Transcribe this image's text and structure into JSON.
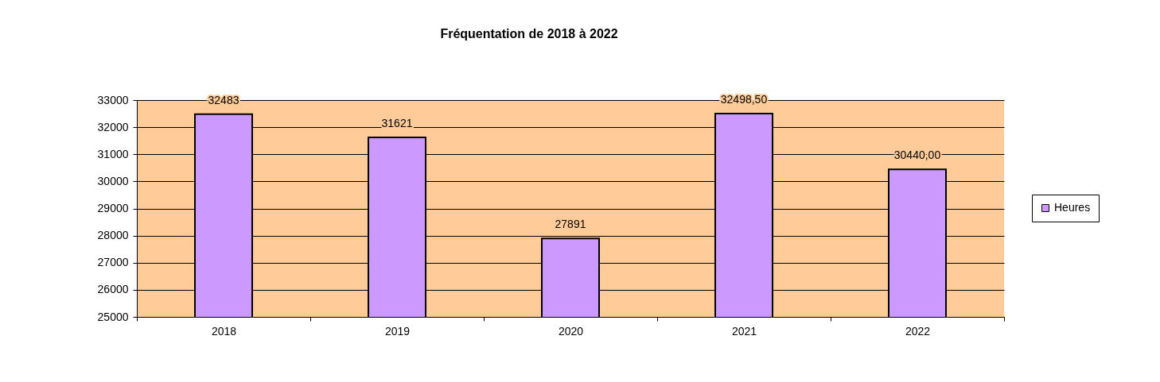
{
  "chart_data": {
    "type": "bar",
    "title": "Fréquentation de 2018 à 2022",
    "categories": [
      "2018",
      "2019",
      "2020",
      "2021",
      "2022"
    ],
    "series": [
      {
        "name": "Heures",
        "color": "#cc99ff",
        "values": [
          32483,
          31621,
          27891,
          32498.5,
          30440
        ],
        "value_labels": [
          "32483",
          "31621",
          "27891",
          "32498,50",
          "30440,00"
        ]
      }
    ],
    "ylim": [
      25000,
      33000
    ],
    "yticks": [
      25000,
      26000,
      27000,
      28000,
      29000,
      30000,
      31000,
      32000,
      33000
    ],
    "grid": "y",
    "legend": "right"
  }
}
